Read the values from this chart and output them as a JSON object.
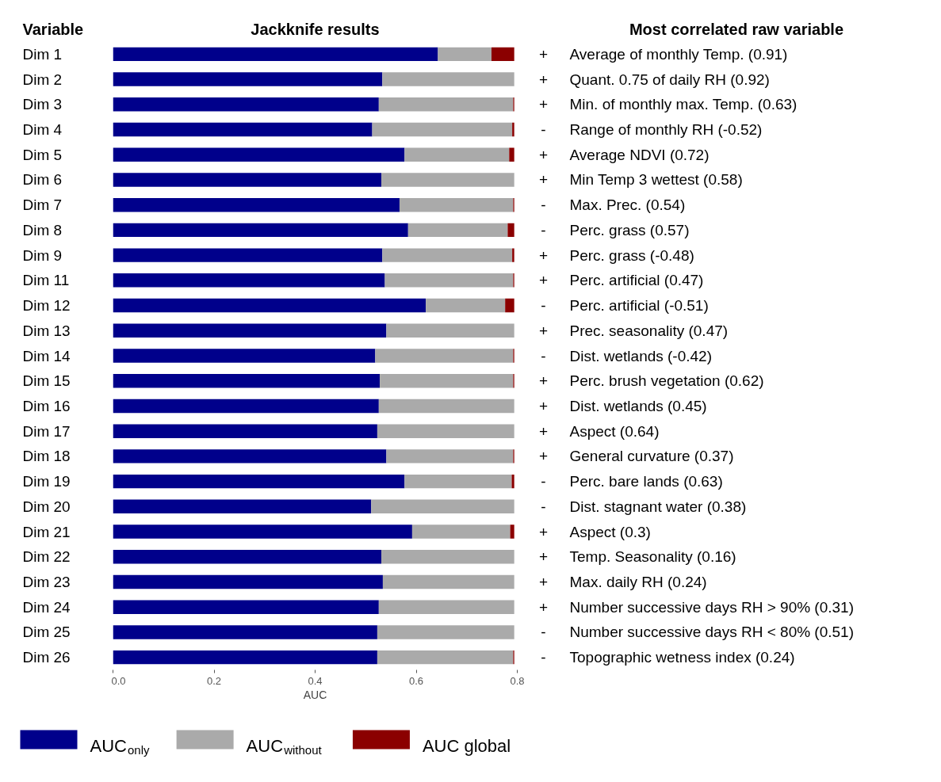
{
  "chart_data": {
    "type": "bar",
    "orientation": "horizontal",
    "stacked": true,
    "title": "Jackknife results",
    "xlabel": "AUC",
    "categories": [
      "Dim 1",
      "Dim 2",
      "Dim 3",
      "Dim 4",
      "Dim 5",
      "Dim 6",
      "Dim 7",
      "Dim 8",
      "Dim 9",
      "Dim 11",
      "Dim 12",
      "Dim 13",
      "Dim 14",
      "Dim 15",
      "Dim 16",
      "Dim 17",
      "Dim 18",
      "Dim 19",
      "Dim 20",
      "Dim 21",
      "Dim 22",
      "Dim 23",
      "Dim 24",
      "Dim 25",
      "Dim 26"
    ],
    "series": [
      {
        "name": "AUC$_{only}$",
        "color": "#00008b",
        "values": [
          0.643,
          0.533,
          0.526,
          0.513,
          0.577,
          0.531,
          0.567,
          0.584,
          0.533,
          0.538,
          0.619,
          0.541,
          0.519,
          0.528,
          0.526,
          0.523,
          0.541,
          0.577,
          0.511,
          0.592,
          0.531,
          0.534,
          0.526,
          0.523,
          0.523
        ]
      },
      {
        "name": "AUC$_{without}$",
        "color": "#aaaaaa",
        "values": [
          0.106,
          0.261,
          0.266,
          0.277,
          0.207,
          0.263,
          0.225,
          0.197,
          0.257,
          0.254,
          0.157,
          0.253,
          0.273,
          0.264,
          0.268,
          0.271,
          0.251,
          0.212,
          0.283,
          0.194,
          0.263,
          0.26,
          0.268,
          0.271,
          0.269
        ]
      },
      {
        "name": "AUC global",
        "color": "#8b0000",
        "values": [
          0.045,
          0,
          0.002,
          0.004,
          0.01,
          0,
          0.002,
          0.013,
          0.004,
          0.002,
          0.018,
          0,
          0.002,
          0.002,
          0,
          0,
          0.002,
          0.005,
          0,
          0.008,
          0,
          0,
          0,
          0,
          0.002
        ]
      }
    ],
    "xlim": [
      0,
      0.8
    ],
    "xticks": [
      {
        "value": 0,
        "label": "0.0"
      },
      0.2,
      0.4,
      0.6,
      0.8
    ],
    "grid": false,
    "legend": "bottom",
    "annotations": [
      "Variable",
      "Most correlated raw variable",
      "+",
      "Average of monthly Temp. (0.91)",
      "+",
      "Quant. 0.75 of daily RH (0.92)",
      "+",
      "Min. of monthly max. Temp. (0.63)",
      "-",
      "Range of monthly RH (-0.52)",
      "+",
      "Average NDVI (0.72)",
      "+",
      "Min Temp 3 wettest (0.58)",
      "-",
      "Max. Prec. (0.54)",
      "-",
      "Perc. grass (0.57)",
      "+",
      "Perc. grass (-0.48)",
      "+",
      "Perc. artificial (0.47)",
      "-",
      "Perc. artificial (-0.51)",
      "+",
      "Prec. seasonality (0.47)",
      "-",
      "Dist. wetlands (-0.42)",
      "+",
      "Perc. brush vegetation (0.62)",
      "+",
      "Dist. wetlands (0.45)",
      "+",
      "Aspect (0.64)",
      "+",
      "General curvature (0.37)",
      "-",
      "Perc. bare lands (0.63)",
      "-",
      "Dist. stagnant water (0.38)",
      "+",
      "Aspect (0.3)",
      "+",
      "Temp. Seasonality (0.16)",
      "+",
      "Max. daily RH (0.24)",
      "+",
      "Number successive days RH > 90% (0.31)",
      "-",
      "Number  successive days RH < 80% (0.51)",
      "-",
      "Topographic wetness index (0.24)"
    ]
  }
}
